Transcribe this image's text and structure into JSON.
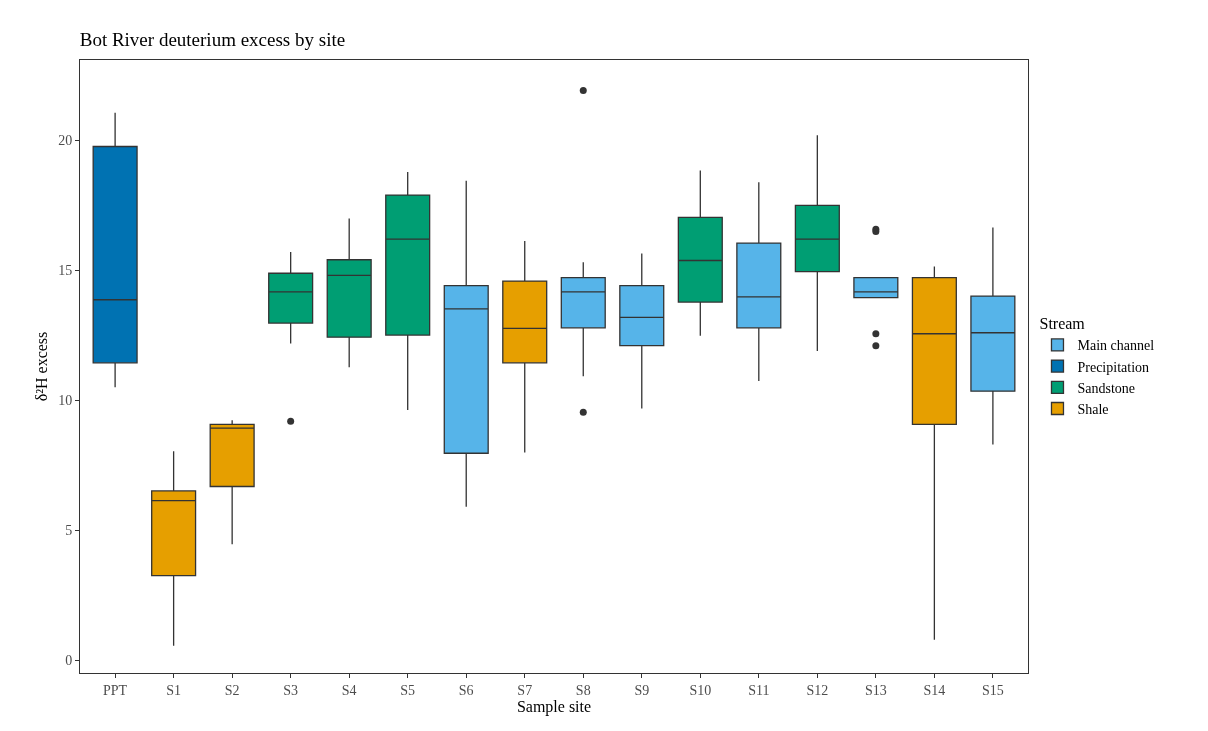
{
  "chart_data": {
    "type": "box",
    "title": "Bot River deuterium excess by site",
    "xlabel": "Sample site",
    "ylabel": "δ²H excess",
    "legend_title": "Stream",
    "categories": [
      "PPT",
      "S1",
      "S2",
      "S3",
      "S4",
      "S5",
      "S6",
      "S7",
      "S8",
      "S9",
      "S10",
      "S11",
      "S12",
      "S13",
      "S14",
      "S15"
    ],
    "ylim": [
      -0.5,
      23.1
    ],
    "yticks": [
      0,
      5,
      10,
      15,
      20
    ],
    "grid": false,
    "legend": "right",
    "series": [
      {
        "name": "Main channel",
        "color": "#56b4e9",
        "boxes": [
          null,
          null,
          null,
          null,
          null,
          null,
          {
            "low": 5.9,
            "q1": 7.96,
            "median": 13.52,
            "q3": 14.41,
            "high": 18.45
          },
          null,
          {
            "low": 10.92,
            "q1": 12.79,
            "median": 14.17,
            "q3": 14.72,
            "high": 15.31,
            "outliers": [
              21.93,
              9.54
            ]
          },
          {
            "low": 9.68,
            "q1": 12.1,
            "median": 13.19,
            "q3": 14.41,
            "high": 15.65
          },
          null,
          {
            "low": 10.74,
            "q1": 12.79,
            "median": 13.98,
            "q3": 16.05,
            "high": 18.39
          },
          null,
          {
            "low": 13.95,
            "q1": 13.95,
            "median": 14.17,
            "q3": 14.72,
            "high": 14.72,
            "outliers": [
              16.58,
              16.5,
              12.56,
              12.1
            ]
          },
          null,
          {
            "low": 8.3,
            "q1": 10.35,
            "median": 12.6,
            "q3": 14.01,
            "high": 16.65
          }
        ]
      },
      {
        "name": "Precipitation",
        "color": "#0072b2",
        "boxes": [
          {
            "low": 10.5,
            "q1": 11.44,
            "median": 13.87,
            "q3": 19.77,
            "high": 21.07
          },
          null,
          null,
          null,
          null,
          null,
          null,
          null,
          null,
          null,
          null,
          null,
          null,
          null,
          null,
          null
        ]
      },
      {
        "name": "Sandstone",
        "color": "#009e73",
        "boxes": [
          null,
          null,
          null,
          {
            "low": 12.19,
            "q1": 12.97,
            "median": 14.17,
            "q3": 14.89,
            "high": 15.71,
            "outliers": [
              9.19
            ]
          },
          {
            "low": 11.27,
            "q1": 12.43,
            "median": 14.81,
            "q3": 15.41,
            "high": 17.0
          },
          {
            "low": 9.63,
            "q1": 12.51,
            "median": 16.2,
            "q3": 17.9,
            "high": 18.79
          },
          null,
          null,
          null,
          null,
          {
            "low": 12.48,
            "q1": 13.78,
            "median": 15.38,
            "q3": 17.04,
            "high": 18.85
          },
          null,
          {
            "low": 11.9,
            "q1": 14.95,
            "median": 16.2,
            "q3": 17.5,
            "high": 20.2
          },
          null,
          null,
          null
        ]
      },
      {
        "name": "Shale",
        "color": "#e69f00",
        "boxes": [
          null,
          {
            "low": 0.55,
            "q1": 3.25,
            "median": 6.14,
            "q3": 6.51,
            "high": 8.04
          },
          {
            "low": 4.46,
            "q1": 6.68,
            "median": 8.93,
            "q3": 9.07,
            "high": 9.23
          },
          null,
          null,
          null,
          null,
          {
            "low": 7.99,
            "q1": 11.44,
            "median": 12.77,
            "q3": 14.59,
            "high": 16.13
          },
          null,
          null,
          null,
          null,
          null,
          null,
          {
            "low": 0.78,
            "q1": 9.07,
            "median": 12.56,
            "q3": 14.72,
            "high": 15.15
          },
          null
        ]
      }
    ]
  }
}
